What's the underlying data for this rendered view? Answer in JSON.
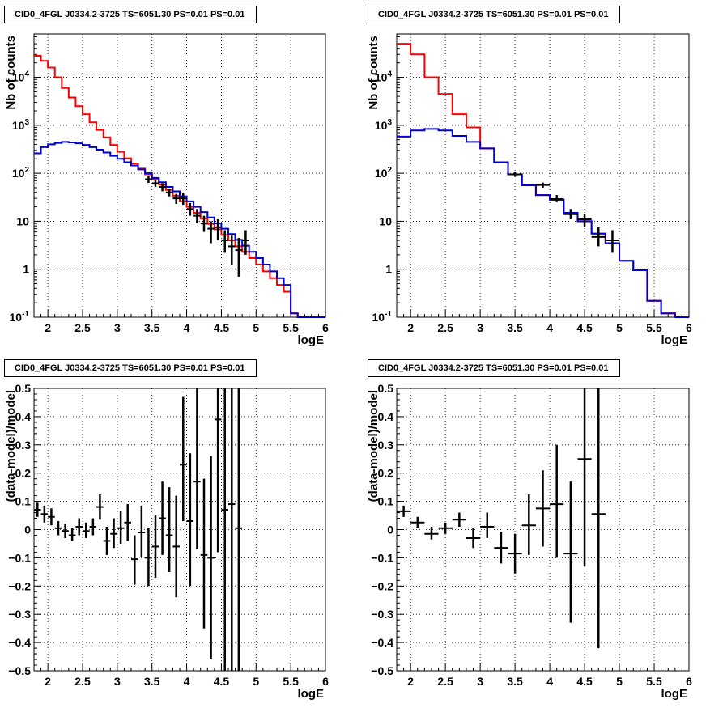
{
  "chart_data": [
    {
      "type": "step",
      "title": "CID0_4FGL J0334.2-3725 TS=6051.30 PS=0.01 PS=0.01",
      "xlabel": "logE",
      "ylabel": "Nb of counts",
      "xlim": [
        1.8,
        6.0
      ],
      "ylim": [
        0.1,
        80000
      ],
      "yscale": "log",
      "grid": true,
      "x_tick_labels": [
        "2",
        "2.5",
        "3",
        "3.5",
        "4",
        "4.5",
        "5",
        "5.5",
        "6"
      ],
      "y_tick_labels": [
        "10^-1",
        "1",
        "10",
        "10^2",
        "10^3",
        "10^4"
      ],
      "bin_width": 0.1,
      "series": [
        {
          "color": "#ff0000",
          "edges": [
            1.8,
            1.9,
            2.0,
            2.1,
            2.2,
            2.3,
            2.4,
            2.5,
            2.6,
            2.7,
            2.8,
            2.9,
            3.0,
            3.1,
            3.2,
            3.3,
            3.4,
            3.5,
            3.6,
            3.7,
            3.8,
            3.9,
            4.0,
            4.1,
            4.2,
            4.3,
            4.4,
            4.5,
            4.6,
            4.7,
            4.8,
            4.9,
            5.0,
            5.1,
            5.2,
            5.3,
            5.4,
            5.5,
            5.6,
            5.7,
            5.8,
            5.9,
            6.0
          ],
          "values": [
            28000,
            22000,
            16000,
            10000,
            6000,
            3800,
            2500,
            1700,
            1150,
            800,
            560,
            390,
            280,
            205,
            160,
            125,
            95,
            75,
            58,
            45,
            34,
            26,
            20,
            15,
            11.5,
            8.8,
            6.8,
            5.2,
            4.0,
            3.0,
            2.3,
            1.7,
            1.25,
            0.9,
            0.65,
            0.47,
            0.34,
            0.12,
            0.1,
            0.1,
            0.1,
            0.1
          ]
        },
        {
          "color": "#0000cc",
          "edges": [
            1.8,
            1.9,
            2.0,
            2.1,
            2.2,
            2.3,
            2.4,
            2.5,
            2.6,
            2.7,
            2.8,
            2.9,
            3.0,
            3.1,
            3.2,
            3.3,
            3.4,
            3.5,
            3.6,
            3.7,
            3.8,
            3.9,
            4.0,
            4.1,
            4.2,
            4.3,
            4.4,
            4.5,
            4.6,
            4.7,
            4.8,
            4.9,
            5.0,
            5.1,
            5.2,
            5.3,
            5.4,
            5.5,
            5.6,
            5.7,
            5.8,
            5.9,
            6.0
          ],
          "values": [
            260,
            350,
            400,
            430,
            450,
            440,
            420,
            390,
            350,
            310,
            270,
            230,
            200,
            170,
            145,
            120,
            100,
            80,
            65,
            52,
            42,
            33,
            26,
            20,
            15.5,
            12,
            9,
            7,
            5.4,
            4.1,
            3.1,
            2.3,
            1.7,
            1.25,
            0.9,
            0.65,
            0.47,
            0.12,
            0.1,
            0.1,
            0.1,
            0.1
          ]
        }
      ],
      "data_points": [
        {
          "x": 3.45,
          "y": 75,
          "ylo": 63,
          "yhi": 87
        },
        {
          "x": 3.55,
          "y": 62,
          "ylo": 52,
          "yhi": 73
        },
        {
          "x": 3.65,
          "y": 52,
          "ylo": 42,
          "yhi": 62
        },
        {
          "x": 3.75,
          "y": 40,
          "ylo": 33,
          "yhi": 48
        },
        {
          "x": 3.85,
          "y": 30,
          "ylo": 23,
          "yhi": 37
        },
        {
          "x": 3.95,
          "y": 30,
          "ylo": 22,
          "yhi": 38
        },
        {
          "x": 4.05,
          "y": 18,
          "ylo": 13,
          "yhi": 24
        },
        {
          "x": 4.15,
          "y": 13,
          "ylo": 9,
          "yhi": 18
        },
        {
          "x": 4.25,
          "y": 9,
          "ylo": 6,
          "yhi": 13
        },
        {
          "x": 4.35,
          "y": 7,
          "ylo": 3.5,
          "yhi": 10
        },
        {
          "x": 4.45,
          "y": 7.5,
          "ylo": 4,
          "yhi": 11
        },
        {
          "x": 4.55,
          "y": 4,
          "ylo": 2.2,
          "yhi": 6.5
        },
        {
          "x": 4.65,
          "y": 3,
          "ylo": 1.2,
          "yhi": 5
        },
        {
          "x": 4.75,
          "y": 2.5,
          "ylo": 0.7,
          "yhi": 4.5
        },
        {
          "x": 4.85,
          "y": 4,
          "ylo": 2,
          "yhi": 6.5
        }
      ]
    },
    {
      "type": "step",
      "title": "CID0_4FGL J0334.2-3725 TS=6051.30 PS=0.01 PS=0.01",
      "xlabel": "logE",
      "ylabel": "Nb of counts",
      "xlim": [
        1.8,
        6.0
      ],
      "ylim": [
        0.1,
        80000
      ],
      "yscale": "log",
      "grid": true,
      "x_tick_labels": [
        "2",
        "2.5",
        "3",
        "3.5",
        "4",
        "4.5",
        "5",
        "5.5",
        "6"
      ],
      "y_tick_labels": [
        "10^-1",
        "1",
        "10",
        "10^2",
        "10^3",
        "10^4"
      ],
      "bin_width": 0.2,
      "series": [
        {
          "color": "#ff0000",
          "edges": [
            1.8,
            2.0,
            2.2,
            2.4,
            2.6,
            2.8,
            3.0,
            3.2,
            3.4,
            3.6,
            3.8,
            4.0,
            4.2,
            4.4,
            4.6,
            4.8,
            5.0,
            5.2,
            5.4,
            5.6,
            5.8,
            6.0
          ],
          "values": [
            50000,
            30000,
            10000,
            4500,
            1700,
            900,
            330,
            170,
            95,
            56,
            35,
            28,
            15,
            10,
            5.5,
            3.5,
            1.5,
            0.95,
            0.22,
            0.12,
            0.1
          ]
        },
        {
          "color": "#0000cc",
          "edges": [
            1.8,
            2.0,
            2.2,
            2.4,
            2.6,
            2.8,
            3.0,
            3.2,
            3.4,
            3.6,
            3.8,
            4.0,
            4.2,
            4.4,
            4.6,
            4.8,
            5.0,
            5.2,
            5.4,
            5.6,
            5.8,
            6.0
          ],
          "values": [
            580,
            780,
            840,
            780,
            600,
            450,
            330,
            170,
            95,
            56,
            35,
            28,
            15,
            10,
            5.5,
            3.5,
            1.5,
            0.95,
            0.22,
            0.12,
            0.1
          ]
        }
      ],
      "data_points": [
        {
          "x": 3.5,
          "y": 95,
          "ylo": 85,
          "yhi": 105
        },
        {
          "x": 3.9,
          "y": 57,
          "ylo": 50,
          "yhi": 64
        },
        {
          "x": 4.1,
          "y": 29,
          "ylo": 25,
          "yhi": 35
        },
        {
          "x": 4.3,
          "y": 14,
          "ylo": 11,
          "yhi": 18
        },
        {
          "x": 4.5,
          "y": 11,
          "ylo": 7.5,
          "yhi": 14
        },
        {
          "x": 4.7,
          "y": 4.7,
          "ylo": 3,
          "yhi": 7.5
        },
        {
          "x": 4.9,
          "y": 4,
          "ylo": 2.2,
          "yhi": 6.5
        }
      ]
    },
    {
      "type": "scatter",
      "title": "CID0_4FGL J0334.2-3725 TS=6051.30 PS=0.01 PS=0.01",
      "xlabel": "logE",
      "ylabel": "(data-model)/model",
      "xlim": [
        1.8,
        6.0
      ],
      "ylim": [
        -0.5,
        0.5
      ],
      "grid": true,
      "x_tick_labels": [
        "2",
        "2.5",
        "3",
        "3.5",
        "4",
        "4.5",
        "5",
        "5.5",
        "6"
      ],
      "y_tick_labels": [
        "-0.5",
        "-0.4",
        "-0.3",
        "-0.2",
        "-0.1",
        "0",
        "0.1",
        "0.2",
        "0.3",
        "0.4",
        "0.5"
      ],
      "bin_width": 0.1,
      "data_points": [
        {
          "x": 1.85,
          "y": 0.07,
          "ylo": 0.045,
          "yhi": 0.095
        },
        {
          "x": 1.95,
          "y": 0.055,
          "ylo": 0.025,
          "yhi": 0.085
        },
        {
          "x": 2.05,
          "y": 0.045,
          "ylo": 0.015,
          "yhi": 0.075
        },
        {
          "x": 2.15,
          "y": 0.005,
          "ylo": -0.02,
          "yhi": 0.03
        },
        {
          "x": 2.25,
          "y": -0.005,
          "ylo": -0.03,
          "yhi": 0.02
        },
        {
          "x": 2.35,
          "y": -0.02,
          "ylo": -0.04,
          "yhi": 0.005
        },
        {
          "x": 2.45,
          "y": 0.01,
          "ylo": -0.02,
          "yhi": 0.04
        },
        {
          "x": 2.55,
          "y": -0.005,
          "ylo": -0.03,
          "yhi": 0.025
        },
        {
          "x": 2.65,
          "y": 0.01,
          "ylo": -0.02,
          "yhi": 0.04
        },
        {
          "x": 2.75,
          "y": 0.08,
          "ylo": 0.035,
          "yhi": 0.125
        },
        {
          "x": 2.85,
          "y": -0.04,
          "ylo": -0.09,
          "yhi": 0.01
        },
        {
          "x": 2.95,
          "y": -0.015,
          "ylo": -0.065,
          "yhi": 0.04
        },
        {
          "x": 3.05,
          "y": 0.005,
          "ylo": -0.05,
          "yhi": 0.065
        },
        {
          "x": 3.15,
          "y": 0.025,
          "ylo": -0.04,
          "yhi": 0.09
        },
        {
          "x": 3.25,
          "y": -0.105,
          "ylo": -0.195,
          "yhi": -0.02
        },
        {
          "x": 3.35,
          "y": -0.01,
          "ylo": -0.1,
          "yhi": 0.085
        },
        {
          "x": 3.45,
          "y": -0.1,
          "ylo": -0.2,
          "yhi": 0.005
        },
        {
          "x": 3.55,
          "y": -0.06,
          "ylo": -0.17,
          "yhi": 0.05
        },
        {
          "x": 3.65,
          "y": 0.04,
          "ylo": -0.09,
          "yhi": 0.17
        },
        {
          "x": 3.75,
          "y": -0.02,
          "ylo": -0.15,
          "yhi": 0.15
        },
        {
          "x": 3.85,
          "y": -0.06,
          "ylo": -0.24,
          "yhi": 0.12
        },
        {
          "x": 3.95,
          "y": 0.23,
          "ylo": 0.03,
          "yhi": 0.47
        },
        {
          "x": 4.05,
          "y": 0.03,
          "ylo": -0.2,
          "yhi": 0.27
        },
        {
          "x": 4.15,
          "y": 0.17,
          "ylo": -0.07,
          "yhi": 0.5
        },
        {
          "x": 4.25,
          "y": -0.09,
          "ylo": -0.35,
          "yhi": 0.18
        },
        {
          "x": 4.35,
          "y": -0.1,
          "ylo": -0.46,
          "yhi": 0.26
        },
        {
          "x": 4.45,
          "y": 0.39,
          "ylo": -0.08,
          "yhi": 0.5
        },
        {
          "x": 4.55,
          "y": 0.07,
          "ylo": -0.5,
          "yhi": 0.5
        },
        {
          "x": 4.65,
          "y": 0.09,
          "ylo": -0.5,
          "yhi": 0.5
        },
        {
          "x": 4.75,
          "y": 0.005,
          "ylo": -0.5,
          "yhi": 0.5
        }
      ]
    },
    {
      "type": "scatter",
      "title": "CID0_4FGL J0334.2-3725 TS=6051.30 PS=0.01 PS=0.01",
      "xlabel": "logE",
      "ylabel": "(data-model)/model",
      "xlim": [
        1.8,
        6.0
      ],
      "ylim": [
        -0.5,
        0.5
      ],
      "grid": true,
      "x_tick_labels": [
        "2",
        "2.5",
        "3",
        "3.5",
        "4",
        "4.5",
        "5",
        "5.5",
        "6"
      ],
      "y_tick_labels": [
        "-0.5",
        "-0.4",
        "-0.3",
        "-0.2",
        "-0.1",
        "0",
        "0.1",
        "0.2",
        "0.3",
        "0.4",
        "0.5"
      ],
      "bin_width": 0.2,
      "data_points": [
        {
          "x": 1.9,
          "y": 0.065,
          "ylo": 0.045,
          "yhi": 0.085
        },
        {
          "x": 2.1,
          "y": 0.025,
          "ylo": 0.005,
          "yhi": 0.045
        },
        {
          "x": 2.3,
          "y": -0.015,
          "ylo": -0.035,
          "yhi": 0.01
        },
        {
          "x": 2.5,
          "y": 0.005,
          "ylo": -0.015,
          "yhi": 0.025
        },
        {
          "x": 2.7,
          "y": 0.035,
          "ylo": 0.01,
          "yhi": 0.06
        },
        {
          "x": 2.9,
          "y": -0.03,
          "ylo": -0.065,
          "yhi": 0.005
        },
        {
          "x": 3.1,
          "y": 0.01,
          "ylo": -0.03,
          "yhi": 0.06
        },
        {
          "x": 3.3,
          "y": -0.065,
          "ylo": -0.12,
          "yhi": -0.01
        },
        {
          "x": 3.5,
          "y": -0.085,
          "ylo": -0.155,
          "yhi": -0.015
        },
        {
          "x": 3.7,
          "y": 0.015,
          "ylo": -0.09,
          "yhi": 0.125
        },
        {
          "x": 3.9,
          "y": 0.075,
          "ylo": -0.06,
          "yhi": 0.21
        },
        {
          "x": 4.1,
          "y": 0.09,
          "ylo": -0.1,
          "yhi": 0.3
        },
        {
          "x": 4.3,
          "y": -0.085,
          "ylo": -0.33,
          "yhi": 0.17
        },
        {
          "x": 4.5,
          "y": 0.25,
          "ylo": -0.13,
          "yhi": 0.5
        },
        {
          "x": 4.7,
          "y": 0.055,
          "ylo": -0.42,
          "yhi": 0.5
        }
      ]
    }
  ]
}
